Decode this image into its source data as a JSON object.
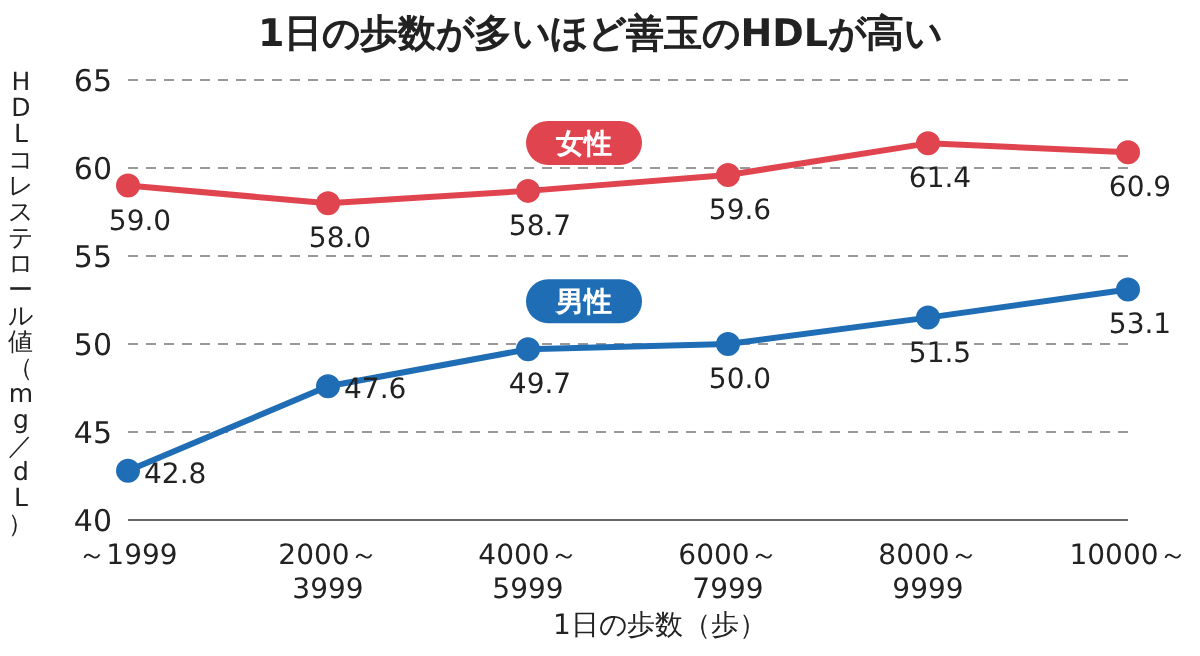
{
  "chart_data": {
    "type": "line",
    "title": "1日の歩数が多いほど善玉のHDLが高い",
    "xlabel": "1日の歩数（歩）",
    "ylabel": "HDLコレステロール値（mg／dL）",
    "categories": [
      "～1999",
      "2000～3999",
      "4000～5999",
      "6000～7999",
      "8000～9999",
      "10000～"
    ],
    "series": [
      {
        "name": "女性",
        "color": "#e0454f",
        "values": [
          59.0,
          58.0,
          58.7,
          59.6,
          61.4,
          60.9
        ],
        "value_labels": [
          "59.0",
          "58.0",
          "58.7",
          "59.6",
          "61.4",
          "60.9"
        ]
      },
      {
        "name": "男性",
        "color": "#1f6db5",
        "values": [
          42.8,
          47.6,
          49.7,
          50.0,
          51.5,
          53.1
        ],
        "value_labels": [
          "42.8",
          "47.6",
          "49.7",
          "50.0",
          "51.5",
          "53.1"
        ]
      }
    ],
    "ylim": [
      40,
      65
    ],
    "yticks": [
      40,
      45,
      50,
      55,
      60,
      65
    ],
    "grid": "y",
    "marker": "circle",
    "line_style": "solid"
  }
}
